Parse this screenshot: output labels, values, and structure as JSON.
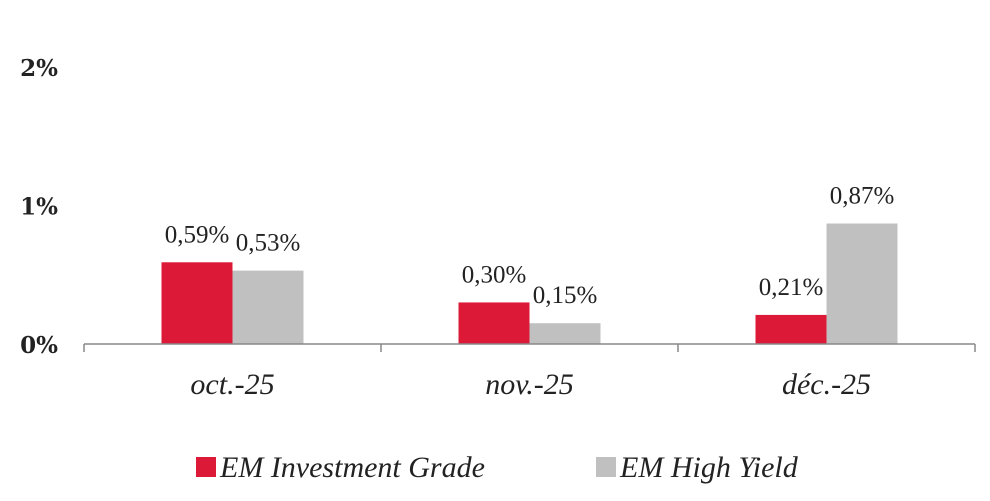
{
  "chart_data": {
    "type": "bar",
    "categories": [
      "oct.-25",
      "nov.-25",
      "déc.-25"
    ],
    "series": [
      {
        "name": "EM Investment Grade",
        "values": [
          0.59,
          0.3,
          0.21
        ],
        "labels": [
          "0,59%",
          "0,30%",
          "0,21%"
        ],
        "color": "#dc1a37"
      },
      {
        "name": "EM High Yield",
        "values": [
          0.53,
          0.15,
          0.87
        ],
        "labels": [
          "0,53%",
          "0,15%",
          "0,87%"
        ],
        "color": "#c0c0c0"
      }
    ],
    "y_ticks": [
      {
        "value": 0,
        "label": "0%"
      },
      {
        "value": 1,
        "label": "1%"
      },
      {
        "value": 2,
        "label": "2%"
      }
    ],
    "ylim": [
      0,
      2
    ],
    "grid": false,
    "legend_position": "bottom"
  }
}
